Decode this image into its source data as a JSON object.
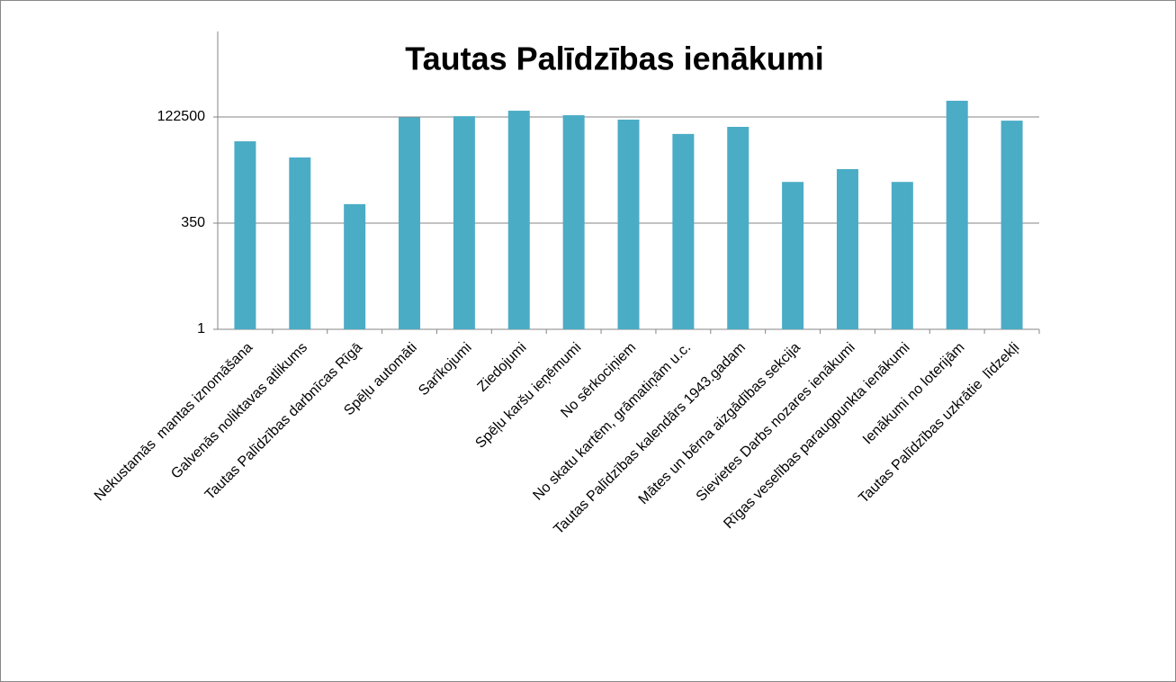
{
  "chart_data": {
    "type": "bar",
    "title": "Tautas Palīdzības ienākumi",
    "categories": [
      "Nekustamās  mantas iznomāšana",
      "Galvenās noliktavas atlikums",
      "Tautas Palīdzības darbnīcas Rīgā",
      "Spēļu automāti",
      "Sarīkojumi",
      "Ziedojumi",
      "Spēļu karšu ieņēmumi",
      "No sērkociņiem",
      "No skatu kartēm, grāmatiņām u.c.",
      "Tautas Palīdzības kalendārs 1943.gadam",
      "Mātes un bērna aizgādības sekcija",
      "Sievietes Darbs nozares ienākumi",
      "Rīgas veselības paraugpunkta ienākumi",
      "Ienākumi no loterijām",
      "Tautas Palīdzības uzkrātie  līdzekļi"
    ],
    "values": [
      32000,
      13100,
      1000,
      120000,
      128000,
      173000,
      135000,
      106000,
      48000,
      71000,
      3400,
      6900,
      3400,
      300000,
      100000
    ],
    "color": "#4bacc6",
    "log_scale": true,
    "ylim": [
      1,
      13700000
    ],
    "yticks": [
      1,
      350,
      122500
    ],
    "grid": true
  }
}
